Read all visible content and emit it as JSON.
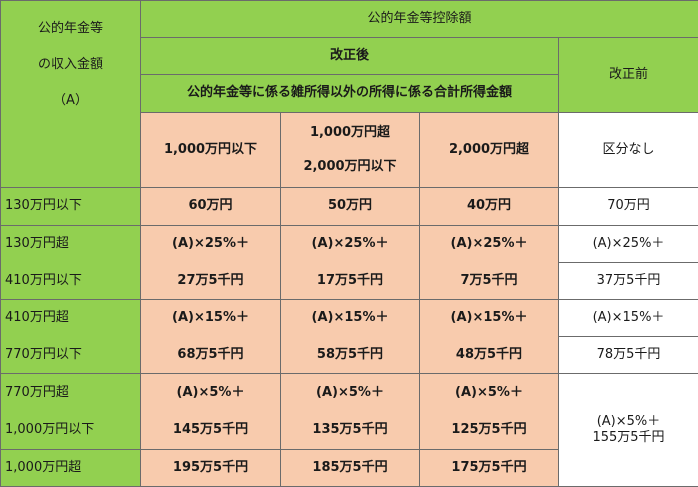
{
  "header": {
    "income_col": [
      "公的年金等",
      "の収入金額",
      "（A）"
    ],
    "deduction": "公的年金等控除額",
    "after": "改正後",
    "other_income": "公的年金等に係る雑所得以外の所得に係る合計所得金額",
    "before": "改正前",
    "tiers": [
      "1,000万円以下",
      [
        "1,000万円超",
        "2,000万円以下"
      ],
      "2,000万円超"
    ],
    "no_division": "区分なし"
  },
  "rows": [
    {
      "range": [
        "130万円以下"
      ],
      "after": [
        [
          "60万円"
        ],
        [
          "50万円"
        ],
        [
          "40万円"
        ]
      ],
      "before": [
        "70万円"
      ]
    },
    {
      "range": [
        "130万円超",
        "410万円以下"
      ],
      "after": [
        [
          "(A)×25%＋",
          "27万5千円"
        ],
        [
          "(A)×25%＋",
          "17万5千円"
        ],
        [
          "(A)×25%＋",
          "7万5千円"
        ]
      ],
      "before": [
        "(A)×25%＋",
        "37万5千円"
      ]
    },
    {
      "range": [
        "410万円超",
        "770万円以下"
      ],
      "after": [
        [
          "(A)×15%＋",
          "68万5千円"
        ],
        [
          "(A)×15%＋",
          "58万5千円"
        ],
        [
          "(A)×15%＋",
          "48万5千円"
        ]
      ],
      "before": [
        "(A)×15%＋",
        "78万5千円"
      ]
    },
    {
      "range": [
        "770万円超",
        "1,000万円以下"
      ],
      "after": [
        [
          "(A)×5%＋",
          "145万5千円"
        ],
        [
          "(A)×5%＋",
          "135万5千円"
        ],
        [
          "(A)×5%＋",
          "125万5千円"
        ]
      ],
      "before": [
        "(A)×5%＋",
        "155万5千円"
      ]
    },
    {
      "range": [
        "1,000万円超"
      ],
      "after": [
        [
          "195万5千円"
        ],
        [
          "185万5千円"
        ],
        [
          "175万5千円"
        ]
      ]
    }
  ]
}
